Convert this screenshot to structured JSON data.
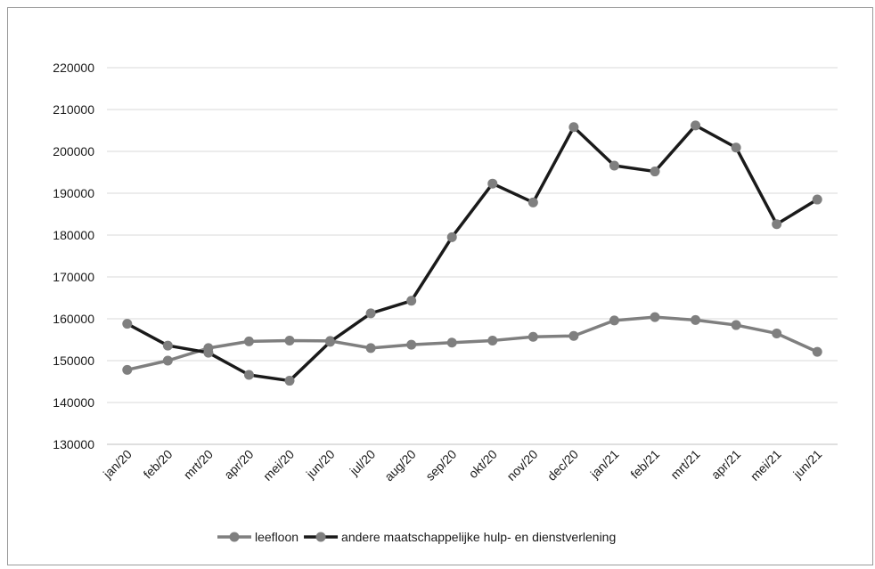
{
  "chart_data": {
    "type": "line",
    "categories": [
      "jan/20",
      "feb/20",
      "mrt/20",
      "apr/20",
      "mei/20",
      "jun/20",
      "jul/20",
      "aug/20",
      "sep/20",
      "okt/20",
      "nov/20",
      "dec/20",
      "jan/21",
      "feb/21",
      "mrt/21",
      "apr/21",
      "mei/21",
      "jun/21"
    ],
    "series": [
      {
        "name": "leefloon",
        "color": "#7f7f7f",
        "values": [
          147800,
          150000,
          153000,
          154600,
          154800,
          154700,
          153000,
          153800,
          154300,
          154800,
          155700,
          155900,
          159600,
          160400,
          159700,
          158500,
          156500,
          152100
        ]
      },
      {
        "name": "andere maatschappelijke hulp- en dienstverlening",
        "color": "#1a1a1a",
        "marker_color": "#7f7f7f",
        "values": [
          158800,
          153600,
          151900,
          146600,
          145200,
          154500,
          161300,
          164300,
          179500,
          192300,
          187800,
          205800,
          196600,
          195200,
          206200,
          200900,
          182600,
          188500
        ]
      }
    ],
    "title": "",
    "xlabel": "",
    "ylabel": "",
    "ylim": [
      130000,
      220000
    ],
    "yticks": [
      130000,
      140000,
      150000,
      160000,
      170000,
      180000,
      190000,
      200000,
      210000,
      220000
    ],
    "grid": true,
    "legend_position": "bottom"
  }
}
